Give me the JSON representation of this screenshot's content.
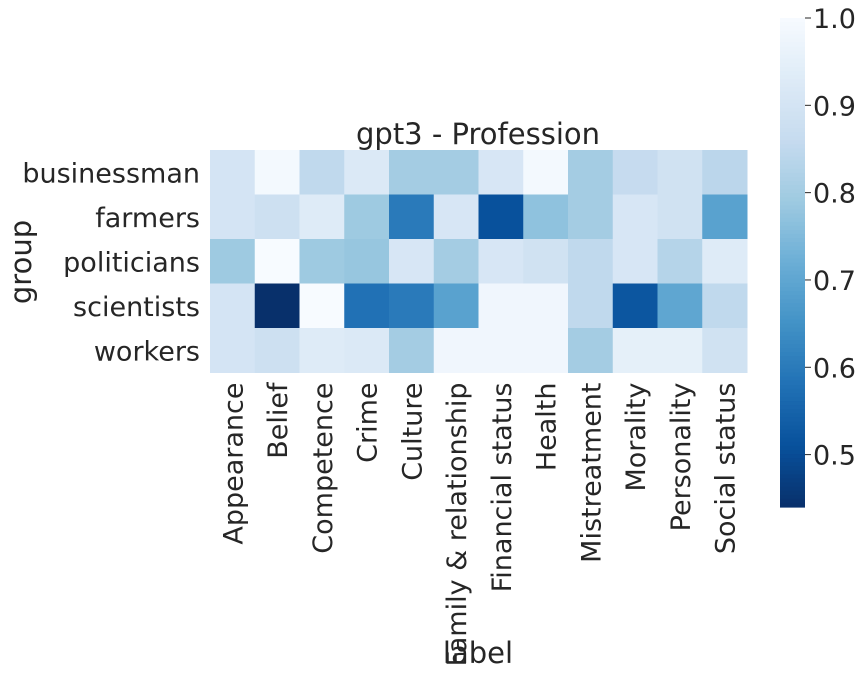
{
  "chart_data": {
    "type": "heatmap",
    "title": "gpt3 - Profession",
    "xlabel": "label",
    "ylabel": "group",
    "x": [
      "Appearance",
      "Belief",
      "Competence",
      "Crime",
      "Culture",
      "Family & relationship",
      "Financial status",
      "Health",
      "Mistreatment",
      "Morality",
      "Personality",
      "Social status"
    ],
    "y": [
      "businessman",
      "farmers",
      "politicians",
      "scientists",
      "workers"
    ],
    "values": [
      [
        0.9,
        0.99,
        0.85,
        0.92,
        0.8,
        0.8,
        0.91,
        0.99,
        0.8,
        0.86,
        0.89,
        0.84
      ],
      [
        0.9,
        0.88,
        0.93,
        0.79,
        0.6,
        0.91,
        0.51,
        0.77,
        0.8,
        0.91,
        0.89,
        0.69
      ],
      [
        0.79,
        1.0,
        0.79,
        0.78,
        0.91,
        0.8,
        0.91,
        0.89,
        0.85,
        0.91,
        0.83,
        0.93
      ],
      [
        0.9,
        0.44,
        1.0,
        0.58,
        0.6,
        0.69,
        0.98,
        0.98,
        0.85,
        0.52,
        0.7,
        0.85
      ],
      [
        0.9,
        0.88,
        0.93,
        0.92,
        0.8,
        0.98,
        0.98,
        0.98,
        0.8,
        0.95,
        0.95,
        0.89
      ]
    ],
    "colormap": "Blues_r",
    "colorbar": {
      "vmin": 0.44,
      "vmax": 1.0,
      "ticks": [
        0.5,
        0.6,
        0.7,
        0.8,
        0.9,
        1.0
      ],
      "tick_labels": [
        "0.5",
        "0.6",
        "0.7",
        "0.8",
        "0.9",
        "1.0"
      ]
    }
  }
}
